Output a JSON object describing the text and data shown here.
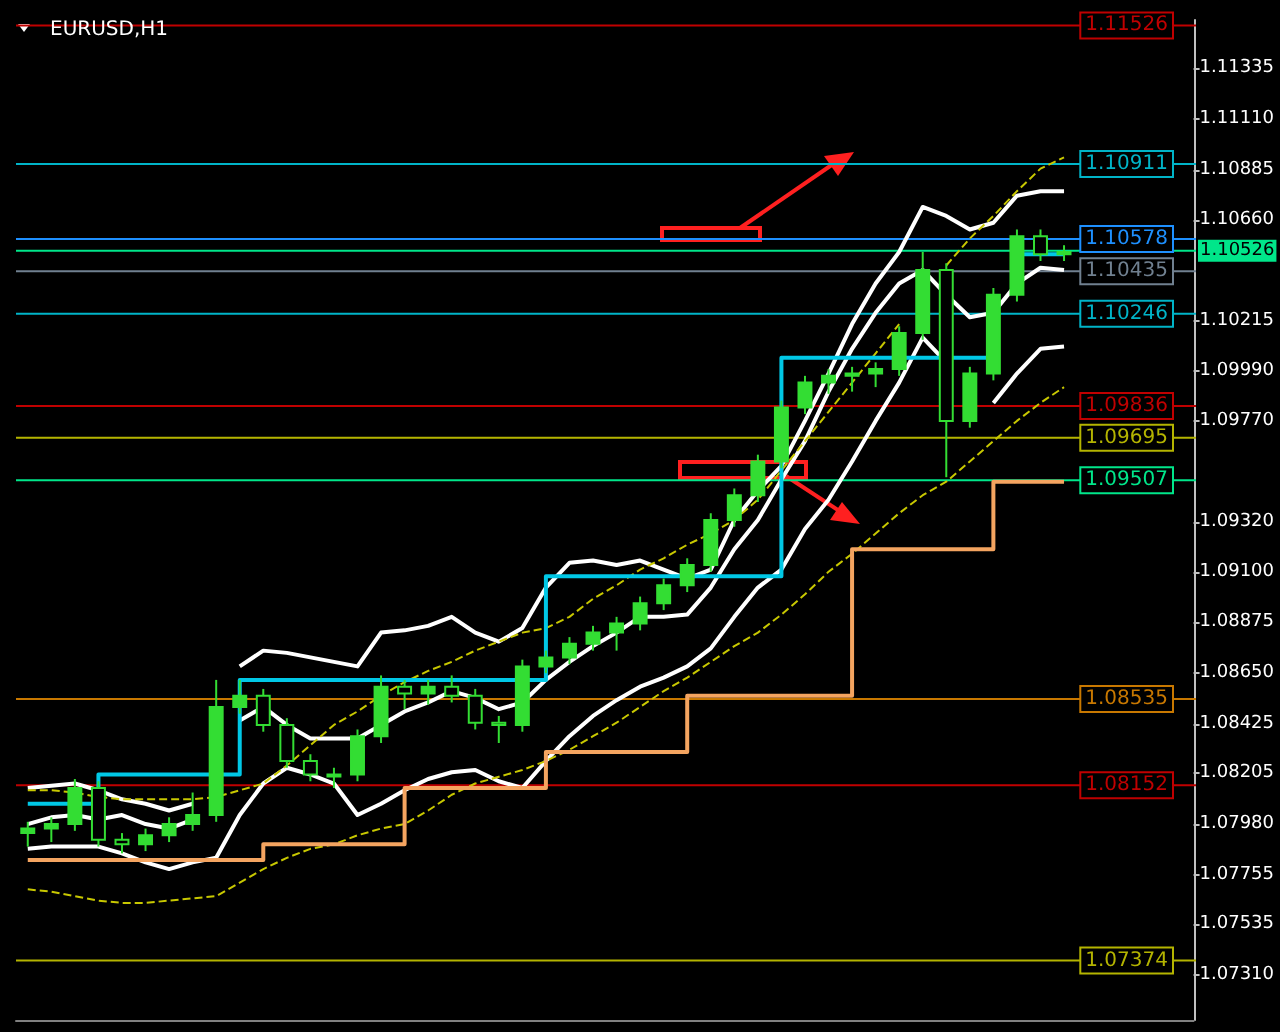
{
  "chart_data": {
    "type": "candlestick",
    "title": "EURUSD,H1",
    "categories": [
      null,
      null,
      null,
      null,
      null,
      null,
      null,
      null,
      null,
      null,
      null,
      null,
      null,
      null,
      null,
      null,
      null,
      null,
      null,
      null,
      null,
      null,
      null,
      null,
      null,
      null,
      null,
      null,
      null,
      null,
      null,
      null,
      null,
      null,
      null,
      null,
      null,
      null,
      null,
      null,
      null,
      null,
      null,
      null,
      null,
      null,
      null,
      null,
      null,
      null
    ],
    "series": [
      {
        "color": "#33dd33",
        "ohlc": [
          [
            1.0794,
            1.0799,
            1.0788,
            1.0796
          ],
          [
            1.0796,
            1.0801,
            1.079,
            1.0798
          ],
          [
            1.0798,
            1.0818,
            1.0795,
            1.0814
          ],
          [
            1.0814,
            1.0817,
            1.0788,
            1.0791
          ],
          [
            1.0791,
            1.0794,
            1.0785,
            1.0789
          ],
          [
            1.0789,
            1.0796,
            1.0786,
            1.0793
          ],
          [
            1.0793,
            1.0801,
            1.079,
            1.0798
          ],
          [
            1.0798,
            1.0812,
            1.0795,
            1.0802
          ],
          [
            1.0802,
            1.0862,
            1.0799,
            1.085
          ],
          [
            1.085,
            1.0862,
            1.0847,
            1.0855
          ],
          [
            1.0855,
            1.0858,
            1.0839,
            1.0842
          ],
          [
            1.0842,
            1.0845,
            1.0823,
            1.0826
          ],
          [
            1.0826,
            1.0829,
            1.0817,
            1.082
          ],
          [
            1.082,
            1.0823,
            1.0814,
            1.082
          ],
          [
            1.082,
            1.084,
            1.0817,
            1.0837
          ],
          [
            1.0837,
            1.0864,
            1.0834,
            1.0859
          ],
          [
            1.0859,
            1.0862,
            1.0849,
            1.0856
          ],
          [
            1.0856,
            1.0862,
            1.0851,
            1.0859
          ],
          [
            1.0859,
            1.0864,
            1.0852,
            1.0855
          ],
          [
            1.0855,
            1.0858,
            1.084,
            1.0843
          ],
          [
            1.0843,
            1.0846,
            1.0834,
            1.0842
          ],
          [
            1.0842,
            1.0871,
            1.0839,
            1.0868
          ],
          [
            1.0868,
            1.0875,
            1.0865,
            1.0872
          ],
          [
            1.0872,
            1.0881,
            1.0869,
            1.0878
          ],
          [
            1.0878,
            1.0886,
            1.0875,
            1.0883
          ],
          [
            1.0883,
            1.089,
            1.0875,
            1.0887
          ],
          [
            1.0887,
            1.0899,
            1.0884,
            1.0896
          ],
          [
            1.0896,
            1.0907,
            1.0893,
            1.0904
          ],
          [
            1.0904,
            1.0916,
            1.0901,
            1.0913
          ],
          [
            1.0913,
            1.0936,
            1.091,
            1.0933
          ],
          [
            1.0933,
            1.0947,
            1.093,
            1.0944
          ],
          [
            1.0944,
            1.0962,
            1.0941,
            1.0959
          ],
          [
            1.0959,
            1.0986,
            1.0956,
            1.0983
          ],
          [
            1.0983,
            1.0997,
            1.098,
            1.0994
          ],
          [
            1.0994,
            1.1,
            1.0989,
            1.0997
          ],
          [
            1.0997,
            1.1001,
            1.099,
            1.0998
          ],
          [
            1.0998,
            1.1003,
            1.0992,
            1.1
          ],
          [
            1.1,
            1.1019,
            1.0997,
            1.1016
          ],
          [
            1.1016,
            1.1052,
            1.1013,
            1.1044
          ],
          [
            1.1044,
            1.1047,
            1.0952,
            1.0977
          ],
          [
            1.0977,
            1.1001,
            1.0974,
            1.0998
          ],
          [
            1.0998,
            1.1036,
            1.0995,
            1.1033
          ],
          [
            1.1033,
            1.1062,
            1.103,
            1.1059
          ],
          [
            1.1059,
            1.1062,
            1.1048,
            1.1051
          ],
          [
            1.1051,
            1.1055,
            1.1048,
            1.1052
          ],
          null,
          null,
          null,
          null,
          null
        ]
      },
      {
        "type": "line",
        "color": "#ffffff",
        "values": [
          1.0814,
          1.0815,
          1.0816,
          1.0813,
          1.0809,
          1.0807,
          1.0804,
          1.0807,
          null,
          1.0868,
          1.0875,
          1.0874,
          1.0872,
          1.087,
          1.0868,
          1.0883,
          1.0884,
          1.0886,
          1.089,
          1.0883,
          1.0879,
          1.0885,
          1.0903,
          1.0914,
          1.0915,
          1.0913,
          1.0915,
          1.0911,
          1.0907,
          1.0911,
          1.0933,
          1.0946,
          1.0957,
          1.0977,
          1.0998,
          1.102,
          1.1038,
          1.1052,
          1.1072,
          1.1068,
          1.1062,
          1.1065,
          1.1077,
          1.1079,
          1.1079,
          null,
          null,
          null,
          null,
          null
        ]
      },
      {
        "type": "line",
        "color": "#ffffff",
        "values": [
          1.0798,
          1.0801,
          1.0802,
          1.08,
          1.0802,
          1.0798,
          1.0796,
          1.08,
          null,
          1.0844,
          1.085,
          1.0842,
          1.0836,
          1.0836,
          1.0836,
          1.0842,
          1.0848,
          1.0852,
          1.0857,
          1.0854,
          1.0849,
          1.0852,
          1.0862,
          1.087,
          1.0877,
          1.0883,
          1.089,
          1.089,
          1.0891,
          1.0903,
          1.092,
          1.0933,
          1.0951,
          1.0968,
          1.099,
          1.1009,
          1.1025,
          1.1038,
          1.1044,
          1.1033,
          1.1023,
          1.1025,
          1.1038,
          1.1045,
          1.1044,
          null,
          null,
          null,
          null,
          null
        ]
      },
      {
        "type": "line",
        "color": "#ffffff",
        "values": [
          1.0787,
          1.0788,
          1.0788,
          1.0788,
          1.0785,
          1.0781,
          1.0778,
          1.0781,
          1.0783,
          1.0802,
          1.0816,
          1.0823,
          1.082,
          1.0816,
          1.0802,
          1.0807,
          1.0813,
          1.0818,
          1.0821,
          1.0822,
          1.0817,
          1.0814,
          1.0826,
          1.0837,
          1.0846,
          1.0853,
          1.0859,
          1.0863,
          1.0868,
          1.0876,
          1.089,
          1.0903,
          1.0911,
          1.0929,
          1.0942,
          1.0959,
          1.0977,
          1.0994,
          1.1014,
          1.1003,
          null,
          1.0985,
          1.0998,
          1.1009,
          1.101,
          null,
          null,
          null,
          null,
          null
        ]
      },
      {
        "type": "line",
        "color": "#c8c800",
        "line_style": "dashed",
        "values": [
          1.0813,
          1.0813,
          1.0812,
          1.081,
          1.0809,
          1.0809,
          1.0809,
          1.0809,
          1.081,
          1.0813,
          1.0816,
          1.0824,
          1.0833,
          1.0842,
          1.0848,
          1.0855,
          1.0861,
          1.0866,
          1.087,
          1.0875,
          1.0879,
          1.0883,
          1.0885,
          1.089,
          1.0898,
          1.0904,
          1.0911,
          1.0916,
          1.0922,
          1.0927,
          1.0933,
          1.0942,
          1.0955,
          1.0968,
          1.0981,
          1.0994,
          1.1007,
          1.102,
          null,
          1.1046,
          1.1058,
          1.1068,
          1.1079,
          1.1089,
          1.1094,
          null,
          null,
          null,
          null,
          null
        ]
      },
      {
        "type": "line",
        "color": "#c8c800",
        "line_style": "dashed",
        "values": [
          1.0769,
          1.0768,
          1.0766,
          1.0764,
          1.0763,
          1.0763,
          1.0764,
          1.0765,
          1.0766,
          1.0772,
          1.0778,
          1.0783,
          1.0787,
          1.0789,
          1.0793,
          1.0796,
          1.0798,
          1.0804,
          1.0811,
          1.0816,
          1.0819,
          1.0822,
          1.0826,
          1.0831,
          1.0837,
          1.0843,
          1.085,
          1.0857,
          1.0863,
          1.087,
          1.0877,
          1.0883,
          1.0891,
          1.09,
          1.091,
          1.0918,
          1.0927,
          1.0936,
          1.0944,
          1.095,
          1.0959,
          1.0968,
          1.0977,
          1.0985,
          1.0992,
          null,
          null,
          null,
          null,
          null
        ]
      },
      {
        "type": "step",
        "color": "#00c8e6",
        "values": [
          1.0807,
          1.0807,
          1.0807,
          1.0807,
          1.082,
          1.082,
          1.082,
          1.082,
          1.082,
          1.082,
          1.0862,
          1.0862,
          1.0862,
          1.0862,
          1.0862,
          1.0862,
          1.0862,
          1.0862,
          1.0862,
          1.0862,
          1.0862,
          1.0862,
          1.0862,
          1.0908,
          1.0908,
          1.0908,
          1.0908,
          1.0908,
          1.0908,
          1.0908,
          1.0908,
          1.0908,
          1.0908,
          1.1005,
          1.1005,
          1.1005,
          1.1005,
          1.1005,
          1.1005,
          1.1005,
          1.1005,
          1.1005,
          null,
          1.1051,
          1.1051,
          null,
          null,
          null,
          null,
          null
        ]
      },
      {
        "type": "step",
        "color": "#f4a460",
        "values": [
          1.0782,
          1.0782,
          1.0782,
          1.0782,
          1.0782,
          1.0782,
          1.0782,
          1.0782,
          1.0782,
          1.0782,
          1.0782,
          1.0789,
          1.0789,
          1.0789,
          1.0789,
          1.0789,
          1.0789,
          1.0814,
          1.0814,
          1.0814,
          1.0814,
          1.0814,
          1.0814,
          1.083,
          1.083,
          1.083,
          1.083,
          1.083,
          1.083,
          1.0855,
          1.0855,
          1.0855,
          1.0855,
          1.0855,
          1.0855,
          1.0855,
          1.092,
          1.092,
          1.092,
          1.092,
          1.092,
          1.092,
          1.095,
          1.095,
          1.095,
          null,
          null,
          null,
          null,
          null
        ]
      }
    ],
    "ylim": [
      1.0711,
      1.1155
    ],
    "yticks": [
      {
        "value": 1.0731,
        "label": "1.07310"
      },
      {
        "value": 1.07535,
        "label": "1.07535"
      },
      {
        "value": 1.07755,
        "label": "1.07755"
      },
      {
        "value": 1.0798,
        "label": "1.07980"
      },
      {
        "value": 1.08205,
        "label": "1.08205"
      },
      {
        "value": 1.08425,
        "label": "1.08425"
      },
      {
        "value": 1.0865,
        "label": "1.08650"
      },
      {
        "value": 1.08875,
        "label": "1.08875"
      },
      {
        "value": 1.091,
        "label": "1.09100"
      },
      {
        "value": 1.0932,
        "label": "1.09320"
      },
      {
        "value": 1.0977,
        "label": "1.09770"
      },
      {
        "value": 1.0999,
        "label": "1.09990"
      },
      {
        "value": 1.10215,
        "label": "1.10215"
      },
      {
        "value": 1.1066,
        "label": "1.10660"
      },
      {
        "value": 1.10885,
        "label": "1.10885"
      },
      {
        "value": 1.1111,
        "label": "1.11110"
      },
      {
        "value": 1.11335,
        "label": "1.11335"
      }
    ],
    "ref_lines": [
      {
        "axis": "y",
        "value": 1.11526,
        "label": "1.11526",
        "color": "#c00000"
      },
      {
        "axis": "y",
        "value": 1.10911,
        "label": "1.10911",
        "color": "#00b4c8"
      },
      {
        "axis": "y",
        "value": 1.10578,
        "label": "1.10578",
        "color": "#1e90ff"
      },
      {
        "axis": "y",
        "value": 1.10526,
        "label": "1.10526",
        "color": "#00e68a"
      },
      {
        "axis": "y",
        "value": 1.10435,
        "label": "1.10435",
        "color": "#708090"
      },
      {
        "axis": "y",
        "value": 1.10246,
        "label": "1.10246",
        "color": "#00b4c8"
      },
      {
        "axis": "y",
        "value": 1.09836,
        "label": "1.09836",
        "color": "#c00000"
      },
      {
        "axis": "y",
        "value": 1.09695,
        "label": "1.09695",
        "color": "#b4b400"
      },
      {
        "axis": "y",
        "value": 1.09507,
        "label": "1.09507",
        "color": "#00e68a"
      },
      {
        "axis": "y",
        "value": 1.08535,
        "label": "1.08535",
        "color": "#c87800"
      },
      {
        "axis": "y",
        "value": 1.08152,
        "label": "1.08152",
        "color": "#c00000"
      },
      {
        "axis": "y",
        "value": 1.07374,
        "label": "1.07374",
        "color": "#b4b400"
      }
    ],
    "tick_labels": "y",
    "grid": false
  }
}
